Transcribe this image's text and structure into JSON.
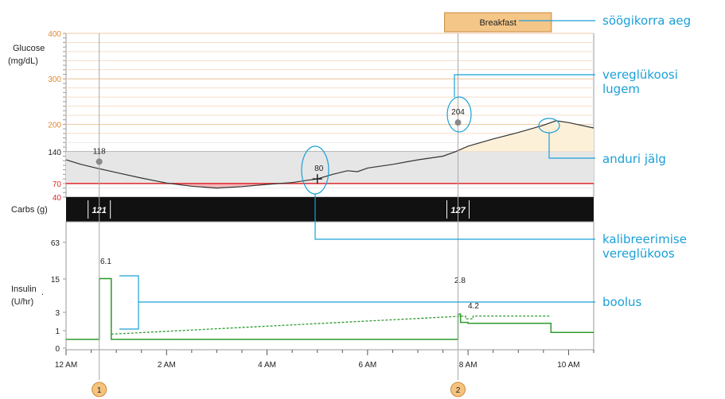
{
  "chart_data": {
    "type": "line",
    "meal": {
      "label": "Breakfast",
      "start": 7.5,
      "end": 9.5
    },
    "glucose": {
      "label_line1": "Glucose",
      "label_line2": "(mg/dL)",
      "ylim": [
        40,
        400
      ],
      "ticks": [
        {
          "value": 400,
          "label": "400",
          "style": "orange"
        },
        {
          "value": 300,
          "label": "300",
          "style": "orange"
        },
        {
          "value": 200,
          "label": "200",
          "style": "orange"
        },
        {
          "value": 140,
          "label": "140",
          "style": "gray"
        },
        {
          "value": 70,
          "label": "70",
          "style": "red"
        },
        {
          "value": 40,
          "label": "40",
          "style": "red"
        }
      ],
      "target_range": [
        70,
        140
      ],
      "sensor_trace": [
        [
          0.0,
          122
        ],
        [
          0.3,
          112
        ],
        [
          0.6,
          104
        ],
        [
          1.0,
          94
        ],
        [
          1.5,
          82
        ],
        [
          2.0,
          71
        ],
        [
          2.5,
          64
        ],
        [
          3.0,
          60
        ],
        [
          3.5,
          63
        ],
        [
          4.0,
          68
        ],
        [
          4.5,
          72
        ],
        [
          4.8,
          77
        ],
        [
          5.0,
          80
        ],
        [
          5.3,
          90
        ],
        [
          5.6,
          98
        ],
        [
          5.8,
          96
        ],
        [
          6.0,
          104
        ],
        [
          6.5,
          112
        ],
        [
          7.0,
          122
        ],
        [
          7.5,
          130
        ],
        [
          7.75,
          140
        ],
        [
          8.0,
          152
        ],
        [
          8.5,
          168
        ],
        [
          9.0,
          182
        ],
        [
          9.5,
          198
        ],
        [
          9.75,
          208
        ],
        [
          10.0,
          204
        ],
        [
          10.5,
          192
        ]
      ],
      "readings": [
        {
          "x": 0.66,
          "y": 118,
          "label": "118",
          "type": "bg"
        },
        {
          "x": 5.0,
          "y": 80,
          "label": "80",
          "type": "calibration"
        },
        {
          "x": 7.8,
          "y": 204,
          "label": "204",
          "type": "bg"
        }
      ]
    },
    "carbs": {
      "label": "Carbs (g)",
      "entries": [
        {
          "x": 0.66,
          "label": "121"
        },
        {
          "x": 7.8,
          "label": "127"
        }
      ]
    },
    "insulin": {
      "label_line1": "Insulin",
      "label_line2": "(U/hr)",
      "extra_tick": ".",
      "ticks": [
        {
          "value": 63,
          "label": "63"
        },
        {
          "value": 15,
          "label": "15"
        },
        {
          "value": 3,
          "label": "3"
        },
        {
          "value": 1,
          "label": "1"
        },
        {
          "value": 0,
          "label": "0"
        }
      ],
      "basal": [
        [
          0.0,
          0.5
        ],
        [
          0.66,
          0.5
        ],
        [
          0.66,
          6.1
        ],
        [
          0.9,
          6.1
        ],
        [
          0.9,
          0.5
        ],
        [
          7.8,
          0.5
        ],
        [
          7.8,
          2.8
        ],
        [
          7.85,
          2.8
        ],
        [
          7.85,
          1.9
        ],
        [
          8.0,
          1.9
        ],
        [
          8.0,
          1.8
        ],
        [
          9.65,
          1.8
        ],
        [
          9.65,
          0.9
        ],
        [
          10.5,
          0.9
        ]
      ],
      "temp_basal": [
        [
          0.66,
          6.1
        ],
        [
          0.9,
          6.1
        ],
        [
          0.9,
          0.8
        ],
        [
          7.95,
          2.6
        ],
        [
          7.95,
          2.3
        ],
        [
          8.1,
          2.3
        ],
        [
          8.1,
          2.6
        ],
        [
          9.65,
          2.6
        ]
      ],
      "bolus_labels": [
        {
          "x": 0.66,
          "y": 6.1,
          "label": "6.1"
        },
        {
          "x": 7.8,
          "y": 2.8,
          "label": "2.8"
        },
        {
          "x": 7.85,
          "y": 4.2,
          "label": "4.2"
        }
      ]
    },
    "x_axis": {
      "xlim": [
        0,
        10.5
      ],
      "ticks": [
        {
          "value": 0,
          "label": "12 AM"
        },
        {
          "value": 2,
          "label": "2 AM"
        },
        {
          "value": 4,
          "label": "4 AM"
        },
        {
          "value": 6,
          "label": "6 AM"
        },
        {
          "value": 8,
          "label": "8 AM"
        },
        {
          "value": 10,
          "label": "10 AM"
        }
      ]
    },
    "event_markers": [
      {
        "x": 0.66,
        "label": "1"
      },
      {
        "x": 7.8,
        "label": "2"
      }
    ]
  },
  "annotations": {
    "meal_time": "söögikorra aeg",
    "bg_reading_line1": "vereglükoosi",
    "bg_reading_line2": "lugem",
    "sensor_trace": "anduri jälg",
    "calibration_line1": "kalibreerimise",
    "calibration_line2": "vereglükoos",
    "bolus": "boolus"
  },
  "colors": {
    "annotation": "#1aa0d8",
    "orange_text": "#e0892f",
    "meal_fill": "#f4c688",
    "target_band": "#e6e6e6",
    "low_fill": "#f4b7ba",
    "high_fill": "#fdf0d8",
    "low_line": "#e0262b",
    "basal": "#2e9a2e"
  }
}
